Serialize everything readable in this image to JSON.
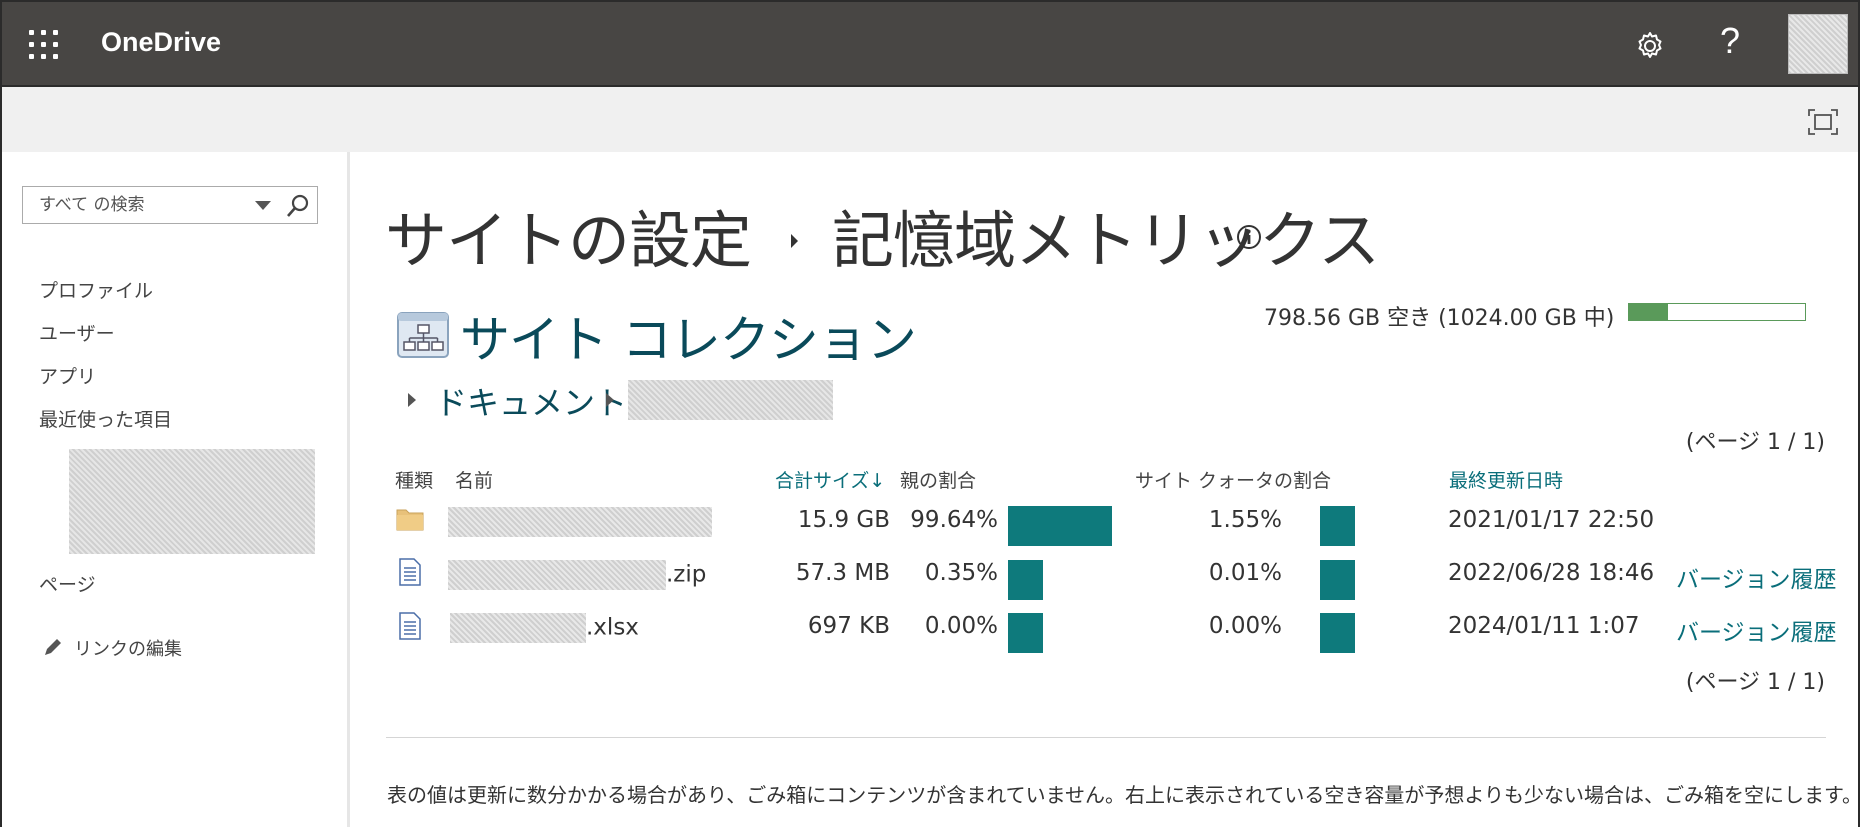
{
  "suite": {
    "brand": "OneDrive",
    "help_label": "?"
  },
  "search": {
    "placeholder": "すべて の検索"
  },
  "leftnav": {
    "items": [
      "プロファイル",
      "ユーザー",
      "アプリ",
      "最近使った項目",
      "ページ"
    ],
    "edit_links": "リンクの編集"
  },
  "page": {
    "breadcrumb_root": "サイトの設定",
    "title": "記憶域メトリックス"
  },
  "quota": {
    "text": "798.56 GB 空き (1024.00 GB 中)",
    "used_fraction": 0.22
  },
  "site_collection": {
    "title": "サイト コレクション",
    "path_root": "ドキュメント"
  },
  "pager": {
    "top": "(ページ 1 / 1)",
    "bottom": "(ページ 1 / 1)"
  },
  "table": {
    "headers": {
      "type": "種類",
      "name": "名前",
      "total_size": "合計サイズ↓",
      "parent_pct": "親の割合",
      "quota_pct": "サイト クォータの割合",
      "modified": "最終更新日時"
    },
    "rows": [
      {
        "type": "folder",
        "icon": "folder-icon",
        "name_suffix": "",
        "size": "15.9 GB",
        "parent_pct": "99.64%",
        "parent_value": 99.64,
        "quota_pct": "1.55%",
        "quota_value": 1.55,
        "modified": "2021/01/17 22:50",
        "history": ""
      },
      {
        "type": "file",
        "icon": "document-icon",
        "name_suffix": ".zip",
        "size": "57.3 MB",
        "parent_pct": "0.35%",
        "parent_value": 0.35,
        "quota_pct": "0.01%",
        "quota_value": 0.01,
        "modified": "2022/06/28 18:46",
        "history": "バージョン履歴"
      },
      {
        "type": "file",
        "icon": "document-icon",
        "name_suffix": ".xlsx",
        "size": "697 KB",
        "parent_pct": "0.00%",
        "parent_value": 0.0,
        "quota_pct": "0.00%",
        "quota_value": 0.0,
        "modified": "2024/01/11 1:07",
        "history": "バージョン履歴"
      }
    ]
  },
  "footnote": "表の値は更新に数分かかる場合があり、ごみ箱にコンテンツが含まれていません。右上に表示されている空き容量が予想よりも少ない場合は、ごみ箱を空にします。",
  "colors": {
    "suite_bg": "#484644",
    "accent": "#0e7a7c",
    "link": "#0a6e7a",
    "quota_green": "#5a9a5a"
  }
}
